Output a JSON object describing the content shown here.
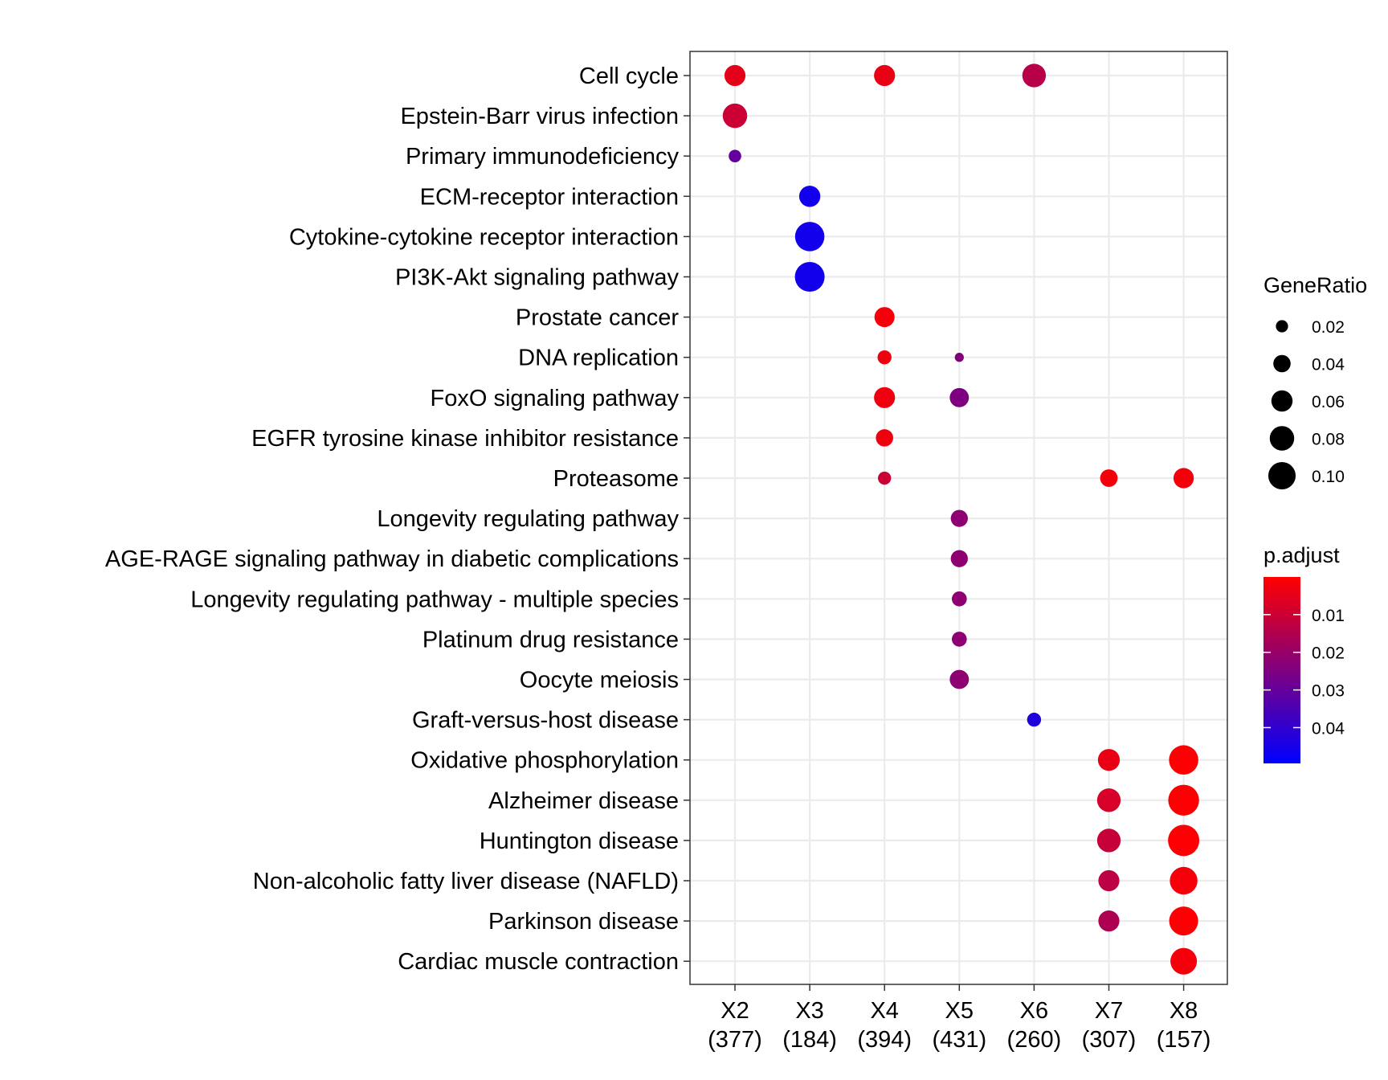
{
  "chart_data": {
    "type": "scatter",
    "title": "",
    "xlabel": "",
    "ylabel": "",
    "x_categories": [
      {
        "name": "X2",
        "count": "(377)"
      },
      {
        "name": "X3",
        "count": "(184)"
      },
      {
        "name": "X4",
        "count": "(394)"
      },
      {
        "name": "X5",
        "count": "(431)"
      },
      {
        "name": "X6",
        "count": "(260)"
      },
      {
        "name": "X7",
        "count": "(307)"
      },
      {
        "name": "X8",
        "count": "(157)"
      }
    ],
    "y_categories": [
      "Cell cycle",
      "Epstein-Barr virus infection",
      "Primary immunodeficiency",
      "ECM-receptor interaction",
      "Cytokine-cytokine receptor interaction",
      "PI3K-Akt signaling pathway",
      "Prostate cancer",
      "DNA replication",
      "FoxO signaling pathway",
      "EGFR tyrosine kinase inhibitor resistance",
      "Proteasome",
      "Longevity regulating pathway",
      "AGE-RAGE signaling pathway in diabetic complications",
      "Longevity regulating pathway - multiple species",
      "Platinum drug resistance",
      "Oocyte meiosis",
      "Graft-versus-host disease",
      "Oxidative phosphorylation",
      "Alzheimer disease",
      "Huntington disease",
      "Non-alcoholic fatty liver disease (NAFLD)",
      "Parkinson disease",
      "Cardiac muscle contraction"
    ],
    "points": [
      {
        "x": "X2",
        "y": "Cell cycle",
        "gene_ratio": 0.059,
        "p_adjust": 0.005
      },
      {
        "x": "X4",
        "y": "Cell cycle",
        "gene_ratio": 0.059,
        "p_adjust": 0.004
      },
      {
        "x": "X6",
        "y": "Cell cycle",
        "gene_ratio": 0.074,
        "p_adjust": 0.014
      },
      {
        "x": "X2",
        "y": "Epstein-Barr virus infection",
        "gene_ratio": 0.08,
        "p_adjust": 0.01
      },
      {
        "x": "X2",
        "y": "Primary immunodeficiency",
        "gene_ratio": 0.021,
        "p_adjust": 0.03
      },
      {
        "x": "X3",
        "y": "ECM-receptor interaction",
        "gene_ratio": 0.06,
        "p_adjust": 0.046
      },
      {
        "x": "X3",
        "y": "Cytokine-cytokine receptor interaction",
        "gene_ratio": 0.115,
        "p_adjust": 0.046
      },
      {
        "x": "X3",
        "y": "PI3K-Akt signaling pathway",
        "gene_ratio": 0.118,
        "p_adjust": 0.046
      },
      {
        "x": "X4",
        "y": "Prostate cancer",
        "gene_ratio": 0.054,
        "p_adjust": 0.002
      },
      {
        "x": "X4",
        "y": "DNA replication",
        "gene_ratio": 0.026,
        "p_adjust": 0.003
      },
      {
        "x": "X5",
        "y": "DNA replication",
        "gene_ratio": 0.011,
        "p_adjust": 0.024
      },
      {
        "x": "X4",
        "y": "FoxO signaling pathway",
        "gene_ratio": 0.059,
        "p_adjust": 0.003
      },
      {
        "x": "X5",
        "y": "FoxO signaling pathway",
        "gene_ratio": 0.049,
        "p_adjust": 0.025
      },
      {
        "x": "X4",
        "y": "EGFR tyrosine kinase inhibitor resistance",
        "gene_ratio": 0.04,
        "p_adjust": 0.003
      },
      {
        "x": "X4",
        "y": "Proteasome",
        "gene_ratio": 0.023,
        "p_adjust": 0.01
      },
      {
        "x": "X7",
        "y": "Proteasome",
        "gene_ratio": 0.041,
        "p_adjust": 0.002
      },
      {
        "x": "X8",
        "y": "Proteasome",
        "gene_ratio": 0.055,
        "p_adjust": 0.002
      },
      {
        "x": "X5",
        "y": "Longevity regulating pathway",
        "gene_ratio": 0.039,
        "p_adjust": 0.022
      },
      {
        "x": "X5",
        "y": "AGE-RAGE signaling pathway in diabetic complications",
        "gene_ratio": 0.039,
        "p_adjust": 0.022
      },
      {
        "x": "X5",
        "y": "Longevity regulating pathway - multiple species",
        "gene_ratio": 0.03,
        "p_adjust": 0.022
      },
      {
        "x": "X5",
        "y": "Platinum drug resistance",
        "gene_ratio": 0.03,
        "p_adjust": 0.022
      },
      {
        "x": "X5",
        "y": "Oocyte meiosis",
        "gene_ratio": 0.049,
        "p_adjust": 0.022
      },
      {
        "x": "X6",
        "y": "Graft-versus-host disease",
        "gene_ratio": 0.026,
        "p_adjust": 0.043
      },
      {
        "x": "X7",
        "y": "Oxidative phosphorylation",
        "gene_ratio": 0.064,
        "p_adjust": 0.004
      },
      {
        "x": "X8",
        "y": "Oxidative phosphorylation",
        "gene_ratio": 0.115,
        "p_adjust": 0.0005
      },
      {
        "x": "X7",
        "y": "Alzheimer disease",
        "gene_ratio": 0.074,
        "p_adjust": 0.008
      },
      {
        "x": "X8",
        "y": "Alzheimer disease",
        "gene_ratio": 0.127,
        "p_adjust": 0.0005
      },
      {
        "x": "X7",
        "y": "Huntington disease",
        "gene_ratio": 0.074,
        "p_adjust": 0.011
      },
      {
        "x": "X8",
        "y": "Huntington disease",
        "gene_ratio": 0.131,
        "p_adjust": 0.0005
      },
      {
        "x": "X7",
        "y": "Non-alcoholic fatty liver disease (NAFLD)",
        "gene_ratio": 0.059,
        "p_adjust": 0.013
      },
      {
        "x": "X8",
        "y": "Non-alcoholic fatty liver disease (NAFLD)",
        "gene_ratio": 0.102,
        "p_adjust": 0.002
      },
      {
        "x": "X7",
        "y": "Parkinson disease",
        "gene_ratio": 0.059,
        "p_adjust": 0.016
      },
      {
        "x": "X8",
        "y": "Parkinson disease",
        "gene_ratio": 0.112,
        "p_adjust": 0.0005
      },
      {
        "x": "X8",
        "y": "Cardiac muscle contraction",
        "gene_ratio": 0.094,
        "p_adjust": 0.002
      }
    ],
    "size_legend": {
      "title": "GeneRatio",
      "breaks": [
        0.02,
        0.04,
        0.06,
        0.08,
        0.1
      ],
      "labels": [
        "0.02",
        "0.04",
        "0.06",
        "0.08",
        "0.10"
      ]
    },
    "color_legend": {
      "title": "p.adjust",
      "low_color": "#ff0000",
      "high_color": "#0000ff",
      "range": [
        0.0,
        0.0495
      ],
      "breaks": [
        0.01,
        0.02,
        0.03,
        0.04
      ],
      "labels": [
        "0.01",
        "0.02",
        "0.03",
        "0.04"
      ]
    },
    "grid": true,
    "legend_position": "right"
  }
}
